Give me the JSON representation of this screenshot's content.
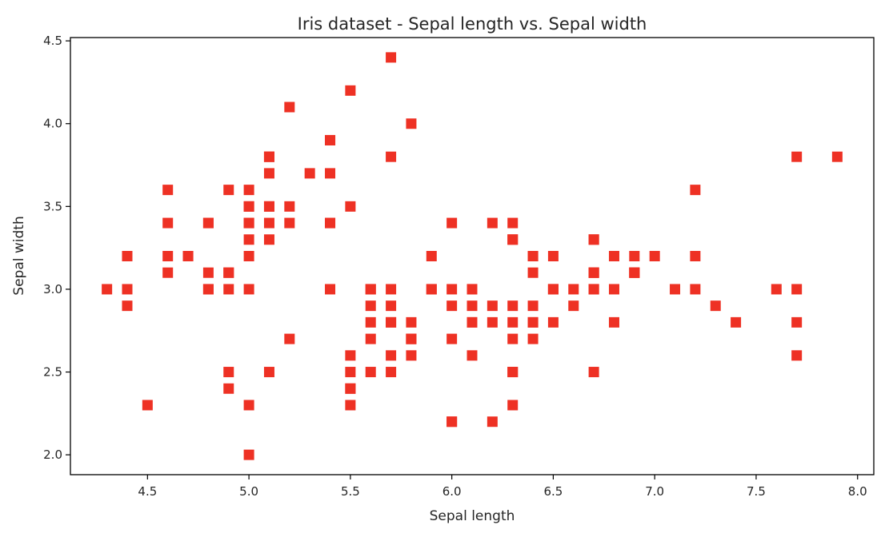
{
  "chart_data": {
    "type": "scatter",
    "title": "Iris dataset - Sepal length vs. Sepal width",
    "xlabel": "Sepal length",
    "ylabel": "Sepal width",
    "xlim": [
      4.12,
      8.08
    ],
    "ylim": [
      1.88,
      4.52
    ],
    "xticks": [
      "4.5",
      "5.0",
      "5.5",
      "6.0",
      "6.5",
      "7.0",
      "7.5",
      "8.0"
    ],
    "yticks": [
      "2.0",
      "2.5",
      "3.0",
      "3.5",
      "4.0",
      "4.5"
    ],
    "grid": false,
    "marker": "square",
    "color": "#ee3124",
    "x": [
      5.1,
      4.9,
      4.7,
      4.6,
      5.0,
      5.4,
      4.6,
      5.0,
      4.4,
      4.9,
      5.4,
      4.8,
      4.8,
      4.3,
      5.8,
      5.7,
      5.4,
      5.1,
      5.7,
      5.1,
      5.4,
      5.1,
      4.6,
      5.1,
      4.8,
      5.0,
      5.0,
      5.2,
      5.2,
      4.7,
      4.8,
      5.4,
      5.2,
      5.5,
      4.9,
      5.0,
      5.5,
      4.9,
      4.4,
      5.1,
      5.0,
      4.5,
      4.4,
      5.0,
      5.1,
      4.8,
      5.1,
      4.6,
      5.3,
      5.0,
      7.0,
      6.4,
      6.9,
      5.5,
      6.5,
      5.7,
      6.3,
      4.9,
      6.6,
      5.2,
      5.0,
      5.9,
      6.0,
      6.1,
      5.6,
      6.7,
      5.6,
      5.8,
      6.2,
      5.6,
      5.9,
      6.1,
      6.3,
      6.1,
      6.4,
      6.6,
      6.8,
      6.7,
      6.0,
      5.7,
      5.5,
      5.5,
      5.8,
      6.0,
      5.4,
      6.0,
      6.7,
      6.3,
      5.6,
      5.5,
      5.5,
      6.1,
      5.8,
      5.0,
      5.6,
      5.7,
      5.7,
      6.2,
      5.1,
      5.7,
      6.3,
      5.8,
      7.1,
      6.3,
      6.5,
      7.6,
      4.9,
      7.3,
      6.7,
      7.2,
      6.5,
      6.4,
      6.8,
      5.7,
      5.8,
      6.4,
      6.5,
      7.7,
      7.7,
      6.0,
      6.9,
      5.6,
      7.7,
      6.3,
      6.7,
      7.2,
      6.2,
      6.1,
      6.4,
      7.2,
      7.4,
      7.9,
      6.4,
      6.3,
      6.1,
      7.7,
      6.3,
      6.4,
      6.0,
      6.9,
      6.7,
      6.9,
      5.8,
      6.8,
      6.7,
      6.7,
      6.3,
      6.5,
      6.2,
      5.9
    ],
    "y": [
      3.5,
      3.0,
      3.2,
      3.1,
      3.6,
      3.9,
      3.4,
      3.4,
      2.9,
      3.1,
      3.7,
      3.4,
      3.0,
      3.0,
      4.0,
      4.4,
      3.9,
      3.5,
      3.8,
      3.8,
      3.4,
      3.7,
      3.6,
      3.3,
      3.4,
      3.0,
      3.4,
      3.5,
      3.4,
      3.2,
      3.1,
      3.4,
      4.1,
      4.2,
      3.1,
      3.2,
      3.5,
      3.6,
      3.0,
      3.4,
      3.5,
      2.3,
      3.2,
      3.5,
      3.8,
      3.0,
      3.8,
      3.2,
      3.7,
      3.3,
      3.2,
      3.2,
      3.1,
      2.3,
      2.8,
      2.8,
      3.3,
      2.4,
      2.9,
      2.7,
      2.0,
      3.0,
      2.2,
      2.9,
      2.9,
      3.1,
      3.0,
      2.7,
      2.2,
      2.5,
      3.2,
      2.8,
      2.5,
      2.8,
      2.9,
      3.0,
      2.8,
      3.0,
      2.9,
      2.6,
      2.4,
      2.4,
      2.7,
      2.7,
      3.0,
      3.4,
      3.1,
      2.3,
      3.0,
      2.5,
      2.6,
      3.0,
      2.6,
      2.3,
      2.7,
      3.0,
      2.9,
      2.9,
      2.5,
      2.8,
      3.3,
      2.7,
      3.0,
      2.9,
      3.0,
      3.0,
      2.5,
      2.9,
      2.5,
      3.6,
      3.2,
      2.7,
      3.0,
      2.5,
      2.8,
      3.2,
      3.0,
      3.8,
      2.6,
      2.2,
      3.2,
      2.8,
      2.8,
      2.7,
      3.3,
      3.2,
      2.8,
      3.0,
      2.8,
      3.0,
      2.8,
      3.8,
      2.8,
      2.8,
      2.6,
      3.0,
      3.4,
      3.1,
      3.0,
      3.1,
      3.1,
      3.1,
      2.7,
      3.2,
      3.3,
      3.0,
      2.5,
      3.0,
      3.4,
      3.0
    ]
  }
}
